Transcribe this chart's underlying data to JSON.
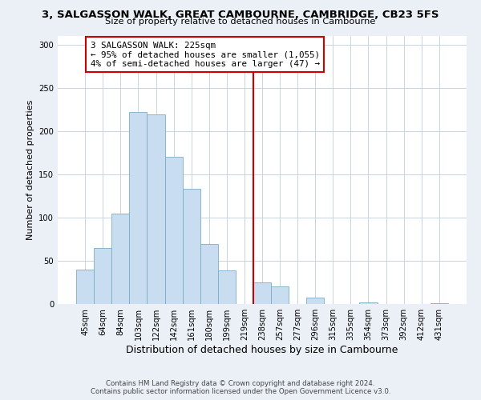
{
  "title": "3, SALGASSON WALK, GREAT CAMBOURNE, CAMBRIDGE, CB23 5FS",
  "subtitle": "Size of property relative to detached houses in Cambourne",
  "xlabel": "Distribution of detached houses by size in Cambourne",
  "ylabel": "Number of detached properties",
  "bar_labels": [
    "45sqm",
    "64sqm",
    "84sqm",
    "103sqm",
    "122sqm",
    "142sqm",
    "161sqm",
    "180sqm",
    "199sqm",
    "219sqm",
    "238sqm",
    "257sqm",
    "277sqm",
    "296sqm",
    "315sqm",
    "335sqm",
    "354sqm",
    "373sqm",
    "392sqm",
    "412sqm",
    "431sqm"
  ],
  "bar_values": [
    40,
    65,
    105,
    222,
    219,
    170,
    133,
    69,
    39,
    0,
    25,
    20,
    0,
    7,
    0,
    0,
    2,
    0,
    0,
    0,
    1
  ],
  "bar_color": "#c8ddef",
  "bar_edge_color": "#7aaec8",
  "vline_x": 9.5,
  "vline_color": "#cc0000",
  "ylim": [
    0,
    310
  ],
  "yticks": [
    0,
    50,
    100,
    150,
    200,
    250,
    300
  ],
  "annotation_title": "3 SALGASSON WALK: 225sqm",
  "annotation_line1": "← 95% of detached houses are smaller (1,055)",
  "annotation_line2": "4% of semi-detached houses are larger (47) →",
  "annotation_box_color": "#cc0000",
  "footer_line1": "Contains HM Land Registry data © Crown copyright and database right 2024.",
  "footer_line2": "Contains public sector information licensed under the Open Government Licence v3.0.",
  "bg_color": "#eaf0f6",
  "plot_bg_color": "#ffffff",
  "grid_color": "#c8d4de"
}
